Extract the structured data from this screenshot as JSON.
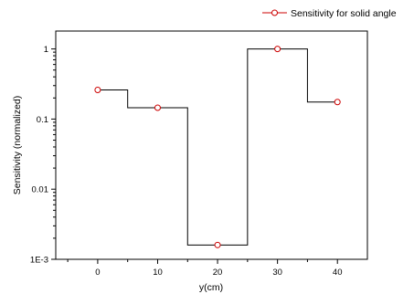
{
  "chart_data": {
    "type": "line",
    "step": true,
    "xlabel": "y(cm)",
    "ylabel": "Sensitivity (normalized)",
    "xlim": [
      -7,
      45
    ],
    "ylim": [
      0.001,
      1.8
    ],
    "yscale": "log",
    "x_ticks": [
      0,
      10,
      20,
      30,
      40
    ],
    "x_tick_labels": [
      "0",
      "10",
      "20",
      "30",
      "40"
    ],
    "y_ticks": [
      0.001,
      0.01,
      0.1,
      1
    ],
    "y_tick_labels": [
      "1E-3",
      "0.01",
      "0.1",
      "1"
    ],
    "legend_position": "top-right",
    "series": [
      {
        "name": "Sensitivity for solid angle",
        "x": [
          0,
          10,
          20,
          30,
          40
        ],
        "y": [
          0.26,
          0.145,
          0.0016,
          1.0,
          0.175
        ],
        "color": "#cc0000",
        "line_color": "#000000"
      }
    ]
  }
}
